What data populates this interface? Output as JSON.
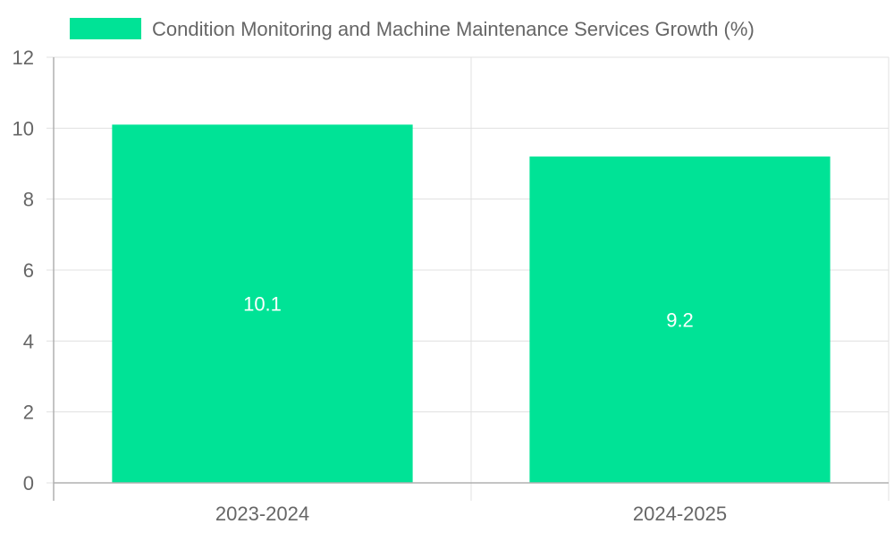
{
  "chart_data": {
    "type": "bar",
    "categories": [
      "2023-2024",
      "2024-2025"
    ],
    "series": [
      {
        "name": "Condition Monitoring and Machine Maintenance Services Growth (%)",
        "values": [
          10.1,
          9.2
        ],
        "data_labels": [
          "10.1",
          "9.2"
        ],
        "color": "#00e396"
      }
    ],
    "ylim": [
      0,
      12
    ],
    "yticks": [
      0,
      2,
      4,
      6,
      8,
      10,
      12
    ],
    "ytick_labels": [
      "0",
      "2",
      "4",
      "6",
      "8",
      "10",
      "12"
    ],
    "grid": true,
    "legend_position": "top-center",
    "colors": {
      "grid": "#e0e0e0",
      "axis": "#b0b0b0",
      "tick_text": "#666666",
      "legend_text": "#666666",
      "data_label": "#ffffff"
    }
  }
}
